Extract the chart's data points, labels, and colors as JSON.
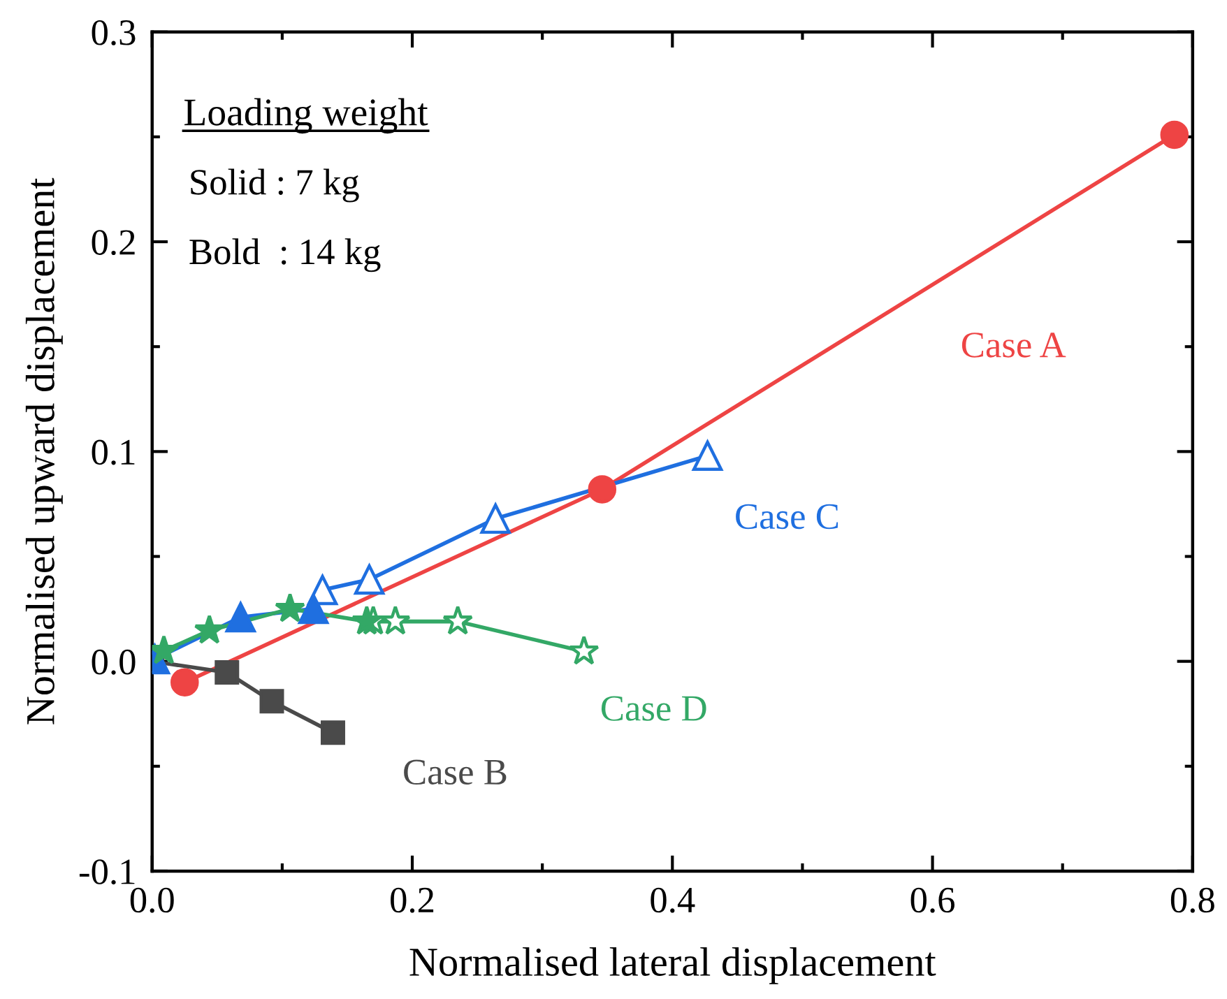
{
  "chart_data": {
    "type": "line",
    "xlabel": "Normalised lateral displacement",
    "ylabel": "Normalised upward displacement",
    "xlim": [
      0,
      0.8
    ],
    "xticks": [
      {
        "value": 0,
        "label": "0.0"
      },
      0.2,
      0.4,
      0.6,
      0.8
    ],
    "ylim": [
      -0.1,
      0.3
    ],
    "yticks": [
      -0.1,
      {
        "value": 0,
        "label": "0.0"
      },
      0.1,
      0.2,
      0.3
    ],
    "grid": false,
    "legend": false,
    "line_style": "solid",
    "annotations": [
      "Loading weight",
      "Solid : 7 kg",
      "Bold  : 14 kg"
    ],
    "series": [
      {
        "name": "Case A",
        "color": "#ee4444",
        "marker": "circle",
        "x": [
          0.025,
          0.346,
          0.786
        ],
        "values": [
          -0.01,
          0.082,
          0.251
        ],
        "colors": [
          "#ee4444",
          "#ee4444",
          "#ee4444"
        ]
      },
      {
        "name": "Case B",
        "color": "#4a4a4a",
        "marker": "square",
        "x": [
          0.0,
          0.0575,
          0.092,
          0.139
        ],
        "values": [
          0.0,
          -0.0053,
          -0.019,
          -0.034
        ],
        "colors": [
          "#4a4a4a",
          "#4a4a4a",
          "#4a4a4a",
          "#4a4a4a"
        ]
      },
      {
        "name": "Case C",
        "color": "#1f6fe0",
        "marker": "triangle",
        "x": [
          0.002,
          0.068,
          0.124,
          0.131,
          0.167,
          0.264,
          0.427
        ],
        "values": [
          0.001,
          0.021,
          0.025,
          0.034,
          0.039,
          0.068,
          0.098
        ],
        "colors": [
          "#1f6fe0",
          "#1f6fe0",
          "#1f6fe0",
          "#ffffff",
          "#ffffff",
          "#ffffff",
          "#ffffff"
        ]
      },
      {
        "name": "Case D",
        "color": "#33a866",
        "marker": "star",
        "x": [
          0.009,
          0.044,
          0.106,
          0.165,
          0.17,
          0.187,
          0.235,
          0.332
        ],
        "values": [
          0.005,
          0.0147,
          0.025,
          0.019,
          0.019,
          0.019,
          0.019,
          0.0047
        ],
        "colors": [
          "#33a866",
          "#33a866",
          "#33a866",
          "#33a866",
          "#ffffff",
          "#ffffff",
          "#ffffff",
          "#ffffff"
        ]
      }
    ]
  }
}
